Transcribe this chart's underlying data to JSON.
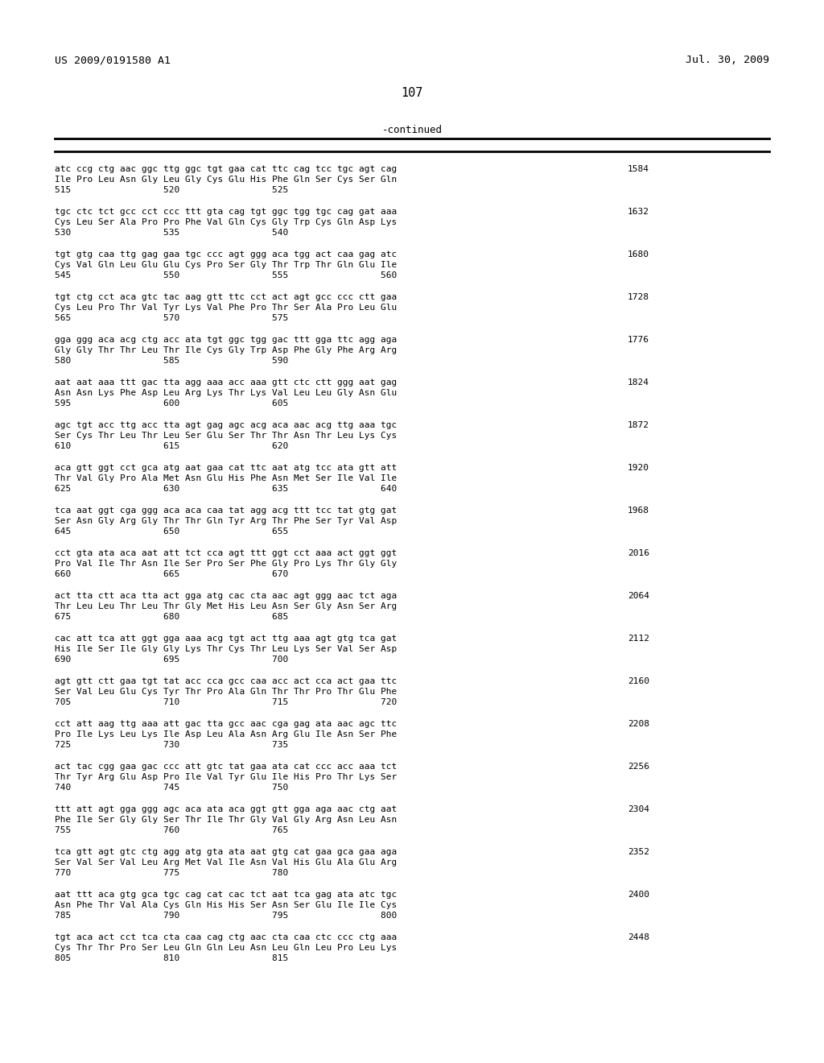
{
  "patent_number": "US 2009/0191580 A1",
  "date": "Jul. 30, 2009",
  "page_number": "107",
  "continued_label": "-continued",
  "background_color": "#ffffff",
  "text_color": "#000000",
  "sequence_blocks": [
    {
      "dna": "atc ccg ctg aac ggc ttg ggc tgt gaa cat ttc cag tcc tgc agt cag",
      "aa": "Ile Pro Leu Asn Gly Leu Gly Cys Glu His Phe Gln Ser Cys Ser Gln",
      "nums": "515                 520                 525",
      "right_num": "1584"
    },
    {
      "dna": "tgc ctc tct gcc cct ccc ttt gta cag tgt ggc tgg tgc cag gat aaa",
      "aa": "Cys Leu Ser Ala Pro Pro Phe Val Gln Cys Gly Trp Cys Gln Asp Lys",
      "nums": "530                 535                 540",
      "right_num": "1632"
    },
    {
      "dna": "tgt gtg caa ttg gag gaa tgc ccc agt ggg aca tgg act caa gag atc",
      "aa": "Cys Val Gln Leu Glu Glu Cys Pro Ser Gly Thr Trp Thr Gln Glu Ile",
      "nums": "545                 550                 555                 560",
      "right_num": "1680"
    },
    {
      "dna": "tgt ctg cct aca gtc tac aag gtt ttc cct act agt gcc ccc ctt gaa",
      "aa": "Cys Leu Pro Thr Val Tyr Lys Val Phe Pro Thr Ser Ala Pro Leu Glu",
      "nums": "565                 570                 575",
      "right_num": "1728"
    },
    {
      "dna": "gga ggg aca acg ctg acc ata tgt ggc tgg gac ttt gga ttc agg aga",
      "aa": "Gly Gly Thr Thr Leu Thr Ile Cys Gly Trp Asp Phe Gly Phe Arg Arg",
      "nums": "580                 585                 590",
      "right_num": "1776"
    },
    {
      "dna": "aat aat aaa ttt gac tta agg aaa acc aaa gtt ctc ctt ggg aat gag",
      "aa": "Asn Asn Lys Phe Asp Leu Arg Lys Thr Lys Val Leu Leu Gly Asn Glu",
      "nums": "595                 600                 605",
      "right_num": "1824"
    },
    {
      "dna": "agc tgt acc ttg acc tta agt gag agc acg aca aac acg ttg aaa tgc",
      "aa": "Ser Cys Thr Leu Thr Leu Ser Glu Ser Thr Thr Asn Thr Leu Lys Cys",
      "nums": "610                 615                 620",
      "right_num": "1872"
    },
    {
      "dna": "aca gtt ggt cct gca atg aat gaa cat ttc aat atg tcc ata gtt att",
      "aa": "Thr Val Gly Pro Ala Met Asn Glu His Phe Asn Met Ser Ile Val Ile",
      "nums": "625                 630                 635                 640",
      "right_num": "1920"
    },
    {
      "dna": "tca aat ggt cga ggg aca aca caa tat agg acg ttt tcc tat gtg gat",
      "aa": "Ser Asn Gly Arg Gly Thr Thr Gln Tyr Arg Thr Phe Ser Tyr Val Asp",
      "nums": "645                 650                 655",
      "right_num": "1968"
    },
    {
      "dna": "cct gta ata aca aat att tct cca agt ttt ggt cct aaa act ggt ggt",
      "aa": "Pro Val Ile Thr Asn Ile Ser Pro Ser Phe Gly Pro Lys Thr Gly Gly",
      "nums": "660                 665                 670",
      "right_num": "2016"
    },
    {
      "dna": "act tta ctt aca tta act gga atg cac cta aac agt ggg aac tct aga",
      "aa": "Thr Leu Leu Thr Leu Thr Gly Met His Leu Asn Ser Gly Asn Ser Arg",
      "nums": "675                 680                 685",
      "right_num": "2064"
    },
    {
      "dna": "cac att tca att ggt gga aaa acg tgt act ttg aaa agt gtg tca gat",
      "aa": "His Ile Ser Ile Gly Gly Lys Thr Cys Thr Leu Lys Ser Val Ser Asp",
      "nums": "690                 695                 700",
      "right_num": "2112"
    },
    {
      "dna": "agt gtt ctt gaa tgt tat acc cca gcc caa acc act cca act gaa ttc",
      "aa": "Ser Val Leu Glu Cys Tyr Thr Pro Ala Gln Thr Thr Pro Thr Glu Phe",
      "nums": "705                 710                 715                 720",
      "right_num": "2160"
    },
    {
      "dna": "cct att aag ttg aaa att gac tta gcc aac cga gag ata aac agc ttc",
      "aa": "Pro Ile Lys Leu Lys Ile Asp Leu Ala Asn Arg Glu Ile Asn Ser Phe",
      "nums": "725                 730                 735",
      "right_num": "2208"
    },
    {
      "dna": "act tac cgg gaa gac ccc att gtc tat gaa ata cat ccc acc aaa tct",
      "aa": "Thr Tyr Arg Glu Asp Pro Ile Val Tyr Glu Ile His Pro Thr Lys Ser",
      "nums": "740                 745                 750",
      "right_num": "2256"
    },
    {
      "dna": "ttt att agt gga ggg agc aca ata aca ggt gtt gga aga aac ctg aat",
      "aa": "Phe Ile Ser Gly Gly Ser Thr Ile Thr Gly Val Gly Arg Asn Leu Asn",
      "nums": "755                 760                 765",
      "right_num": "2304"
    },
    {
      "dna": "tca gtt agt gtc ctg agg atg gta ata aat gtg cat gaa gca gaa aga",
      "aa": "Ser Val Ser Val Leu Arg Met Val Ile Asn Val His Glu Ala Glu Arg",
      "nums": "770                 775                 780",
      "right_num": "2352"
    },
    {
      "dna": "aat ttt aca gtg gca tgc cag cat cac tct aat tca gag ata atc tgc",
      "aa": "Asn Phe Thr Val Ala Cys Gln His His Ser Asn Ser Glu Ile Ile Cys",
      "nums": "785                 790                 795                 800",
      "right_num": "2400"
    },
    {
      "dna": "tgt aca act cct tca cta caa cag ctg aac cta caa ctc ccc ctg aaa",
      "aa": "Cys Thr Thr Pro Ser Leu Gln Gln Leu Asn Leu Gln Leu Pro Leu Lys",
      "nums": "805                 810                 815",
      "right_num": "2448"
    }
  ]
}
